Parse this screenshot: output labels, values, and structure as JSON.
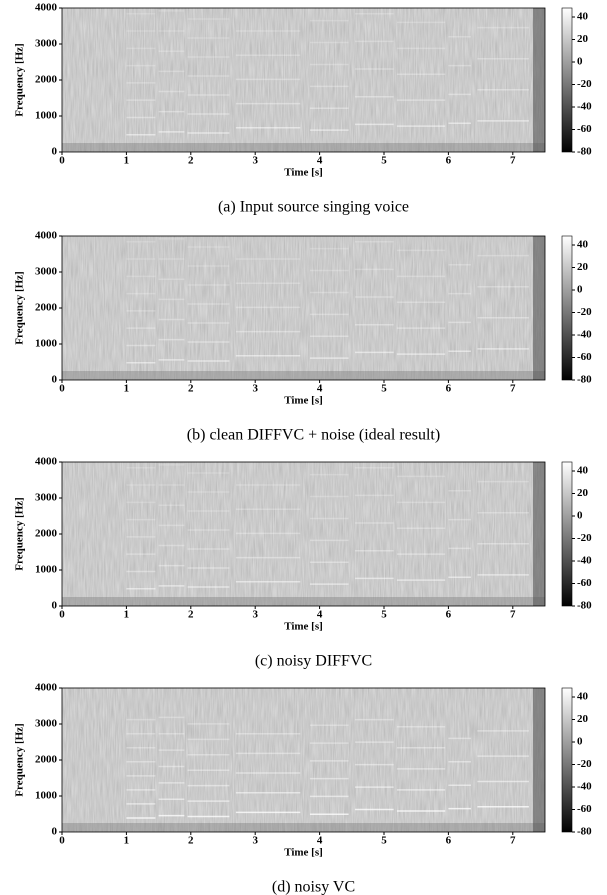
{
  "chart_data": [
    {
      "type": "spectrogram",
      "caption": "(a) Input source singing voice",
      "x_label": "Time [s]",
      "y_label": "Frequency [Hz]",
      "xlim": [
        0,
        7.5
      ],
      "xticks": [
        0,
        1,
        2,
        3,
        4,
        5,
        6,
        7
      ],
      "ylim": [
        0,
        4000
      ],
      "yticks": [
        0,
        1000,
        2000,
        3000,
        4000
      ],
      "colorbar_lim": [
        -80,
        48
      ],
      "colorbar_ticks": [
        -80,
        -60,
        -40,
        -20,
        0,
        20,
        40
      ]
    },
    {
      "type": "spectrogram",
      "caption": "(b) clean DIFFVC + noise (ideal result)",
      "x_label": "Time [s]",
      "y_label": "Frequency [Hz]",
      "xlim": [
        0,
        7.5
      ],
      "xticks": [
        0,
        1,
        2,
        3,
        4,
        5,
        6,
        7
      ],
      "ylim": [
        0,
        4000
      ],
      "yticks": [
        0,
        1000,
        2000,
        3000,
        4000
      ],
      "colorbar_lim": [
        -80,
        48
      ],
      "colorbar_ticks": [
        -80,
        -60,
        -40,
        -20,
        0,
        20,
        40
      ]
    },
    {
      "type": "spectrogram",
      "caption": "(c) noisy DIFFVC",
      "x_label": "Time [s]",
      "y_label": "Frequency [Hz]",
      "xlim": [
        0,
        7.5
      ],
      "xticks": [
        0,
        1,
        2,
        3,
        4,
        5,
        6,
        7
      ],
      "ylim": [
        0,
        4000
      ],
      "yticks": [
        0,
        1000,
        2000,
        3000,
        4000
      ],
      "colorbar_lim": [
        -80,
        48
      ],
      "colorbar_ticks": [
        -80,
        -60,
        -40,
        -20,
        0,
        20,
        40
      ]
    },
    {
      "type": "spectrogram",
      "caption": "(d) noisy VC",
      "x_label": "Time [s]",
      "y_label": "Frequency [Hz]",
      "xlim": [
        0,
        7.5
      ],
      "xticks": [
        0,
        1,
        2,
        3,
        4,
        5,
        6,
        7
      ],
      "ylim": [
        0,
        4000
      ],
      "yticks": [
        0,
        1000,
        2000,
        3000,
        4000
      ],
      "colorbar_lim": [
        -80,
        48
      ],
      "colorbar_ticks": [
        -80,
        -60,
        -40,
        -20,
        0,
        20,
        40
      ]
    }
  ]
}
